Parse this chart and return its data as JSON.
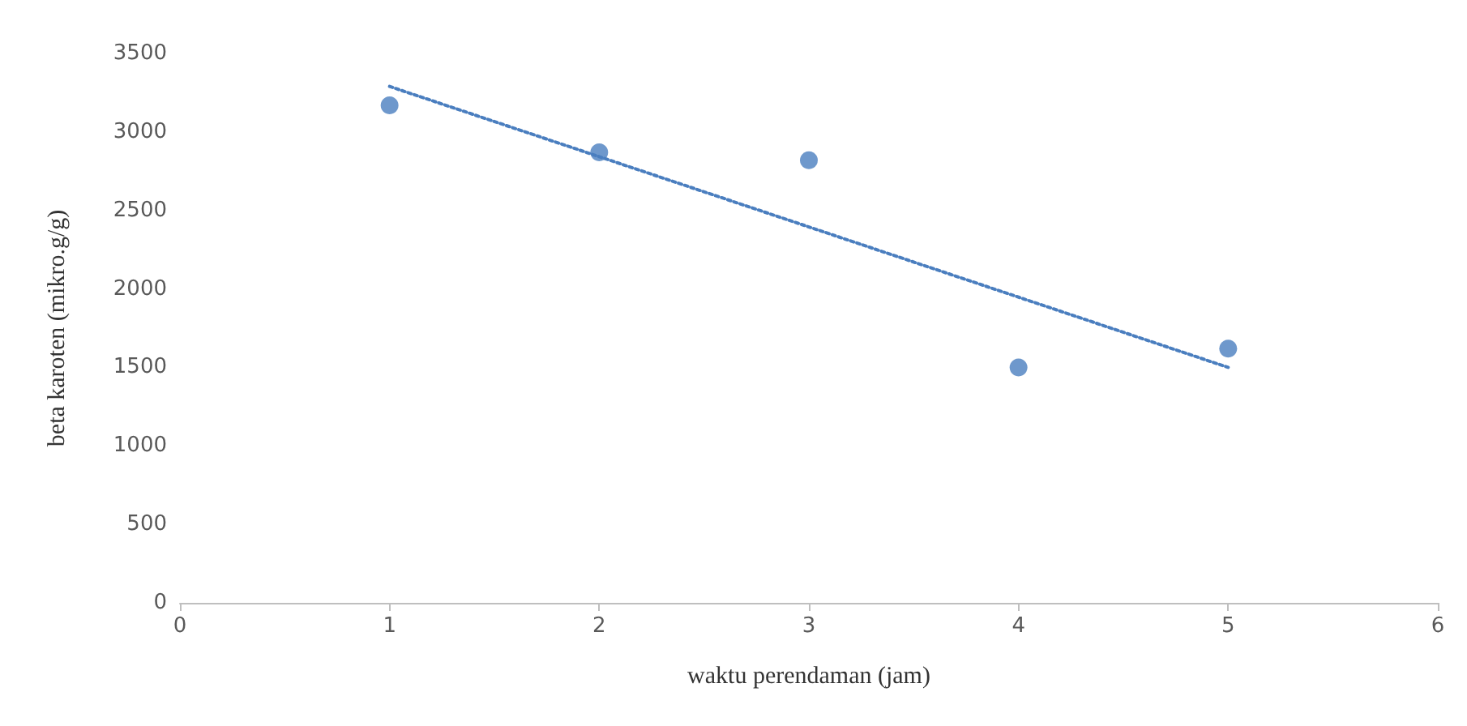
{
  "chart_data": {
    "type": "scatter",
    "xlabel": "waktu perendaman (jam)",
    "ylabel": "beta karoten (mikro.g/g)",
    "x": [
      1,
      2,
      3,
      4,
      5
    ],
    "series": [
      {
        "type": "scatter",
        "color": "#4a7ebf",
        "values": [
          3170,
          2870,
          2820,
          1500,
          1620
        ],
        "marker": "circle"
      },
      {
        "type": "line",
        "color": "#4a7ebf",
        "x": [
          1,
          5
        ],
        "values": [
          3290,
          1500
        ],
        "line_style": "dotted",
        "marker": "none"
      }
    ],
    "xlim": [
      0,
      6
    ],
    "xticks": [
      0,
      1,
      2,
      3,
      4,
      5,
      6
    ],
    "ylim": [
      0,
      3500
    ],
    "yticks": [
      0,
      500,
      1000,
      1500,
      2000,
      2500,
      3000,
      3500
    ],
    "grid": false
  }
}
